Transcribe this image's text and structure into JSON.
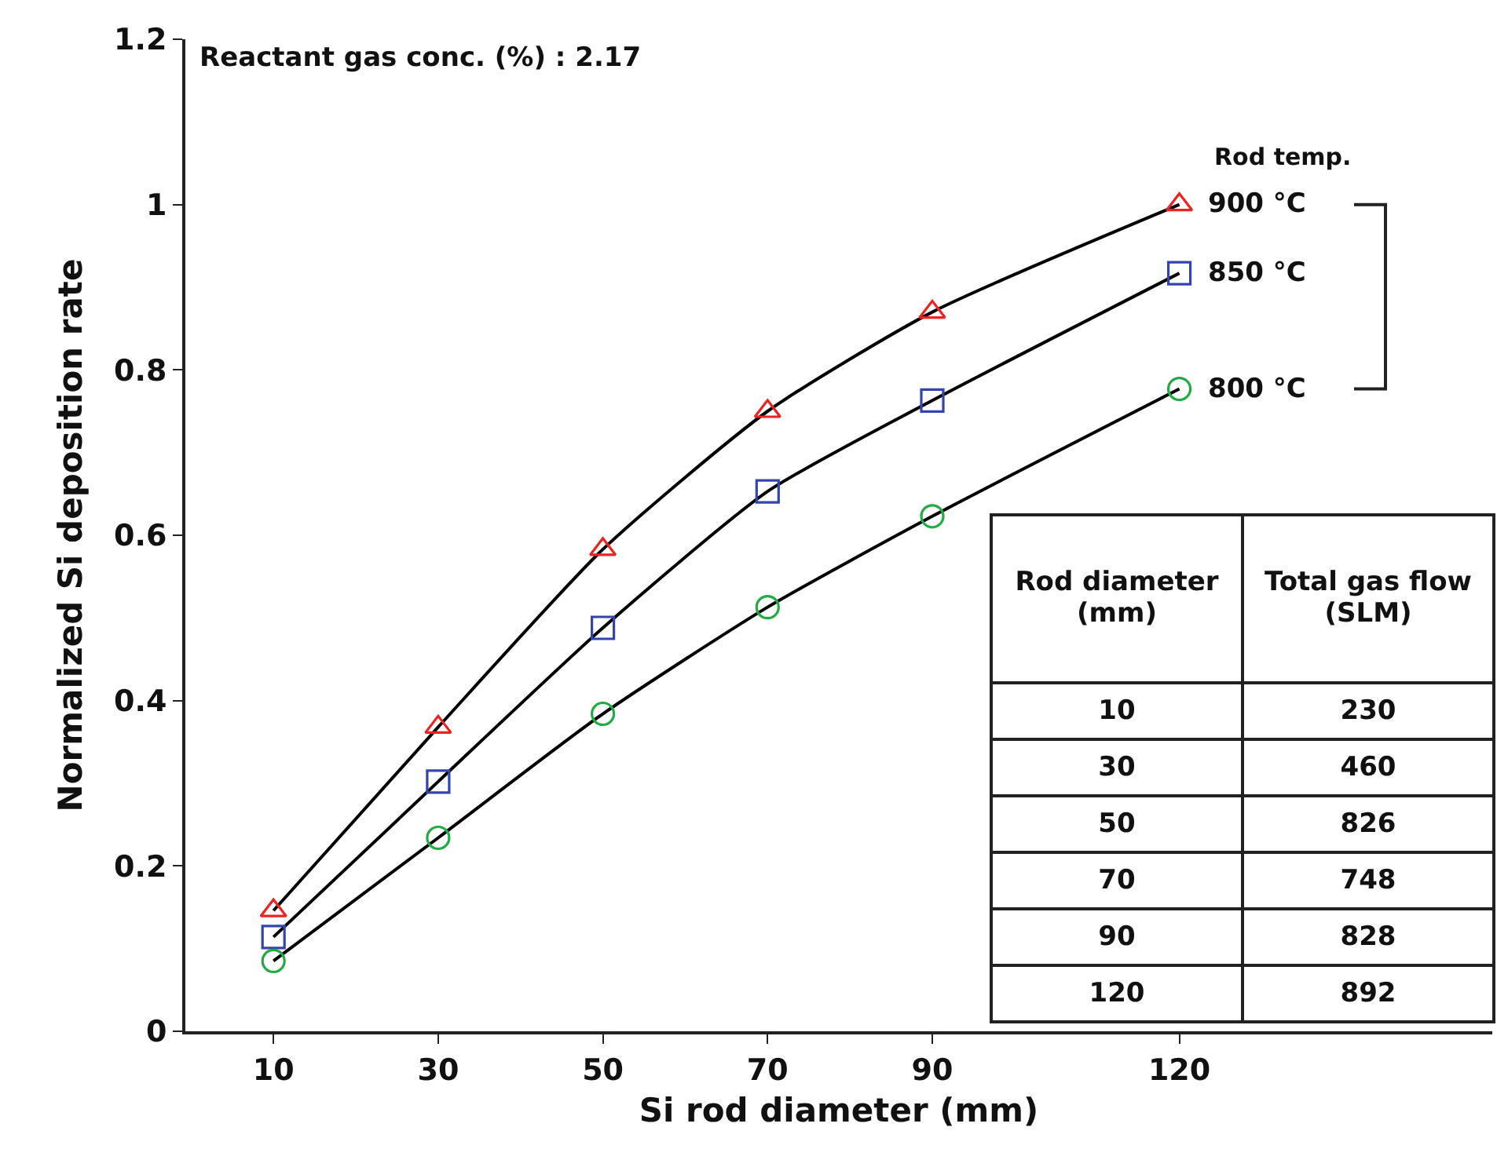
{
  "chart_data": {
    "type": "scatter",
    "xlabel": "Si rod diameter (mm)",
    "ylabel": "Normalized Si deposition rate",
    "x": [
      10,
      30,
      50,
      70,
      90,
      120
    ],
    "series": [
      {
        "name": "900 °C",
        "color": "#ee2222",
        "marker": "triangle",
        "values": [
          0.146,
          0.368,
          0.583,
          0.75,
          0.87,
          1.0
        ]
      },
      {
        "name": "850 °C",
        "color": "#3344aa",
        "marker": "square",
        "values": [
          0.114,
          0.302,
          0.488,
          0.653,
          0.763,
          0.917
        ]
      },
      {
        "name": "800 °C",
        "color": "#22aa44",
        "marker": "circle",
        "values": [
          0.085,
          0.234,
          0.384,
          0.513,
          0.623,
          0.777
        ]
      },
      {
        "type": "line",
        "color": "#000000",
        "marker": "none",
        "values": [
          0.146,
          0.368,
          0.583,
          0.75,
          0.87,
          1.0
        ]
      },
      {
        "type": "line",
        "color": "#000000",
        "marker": "none",
        "values": [
          0.114,
          0.302,
          0.488,
          0.653,
          0.763,
          0.917
        ]
      },
      {
        "type": "line",
        "color": "#000000",
        "marker": "none",
        "values": [
          0.085,
          0.234,
          0.384,
          0.513,
          0.623,
          0.777
        ]
      }
    ],
    "xlim": [
      -0.7,
      158
    ],
    "xticks": [
      10,
      30,
      50,
      70,
      90,
      120
    ],
    "ylim": [
      0,
      1.2
    ],
    "yticks": [
      0,
      0.2,
      0.4,
      0.6,
      0.8,
      1,
      1.2
    ],
    "grid": false,
    "legend": false,
    "annotations": [
      "Reactant gas conc. (%) : 2.17",
      "Rod temp.",
      "Rod diameter (mm)",
      "Total gas flow (SLM)",
      "10",
      "230",
      "30",
      "460",
      "50",
      "826",
      "70",
      "748",
      "90",
      "828",
      "120",
      "892"
    ]
  }
}
